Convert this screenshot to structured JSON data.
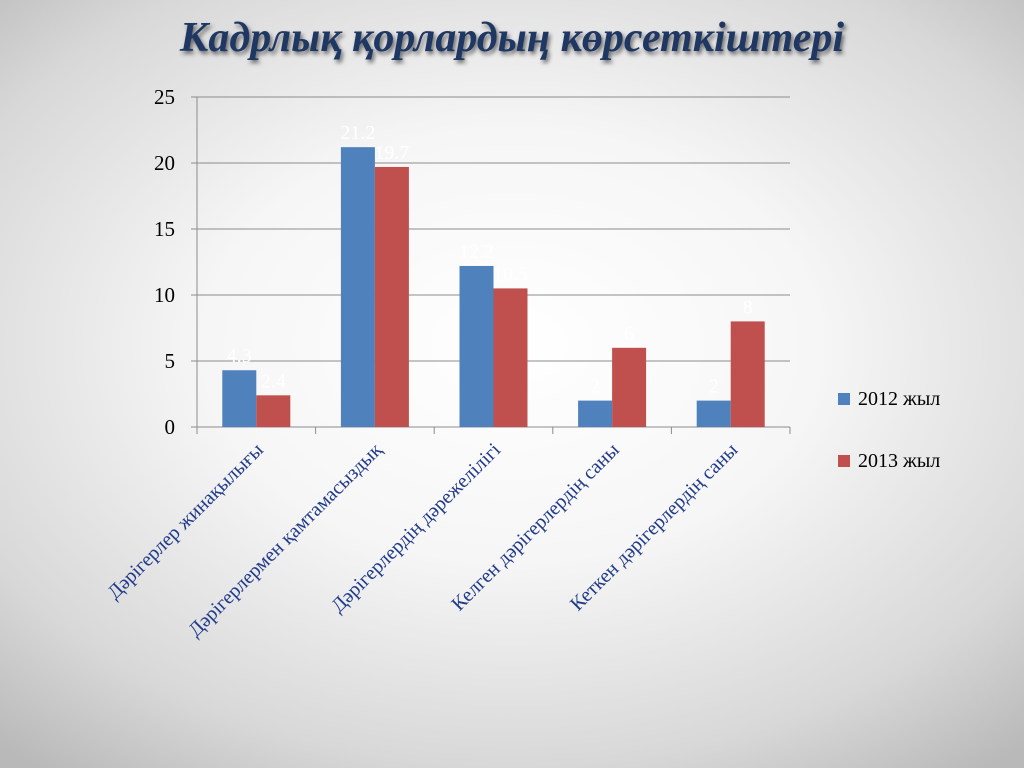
{
  "slide": {
    "title": "Кадрлық қорлардың көрсеткіштері"
  },
  "chart_data": {
    "type": "bar",
    "categories": [
      "Дәрігерлер жинақылығы",
      "Дәрігерлермен қамтамасыздық",
      "Дәрігерлердің дәрежелілігі",
      "Келген дәрігерлердің саны",
      "Кеткен дәрігерлердің саны"
    ],
    "series": [
      {
        "name": "2012 жыл",
        "color": "#4f81bd",
        "values": [
          4.3,
          21.2,
          12.2,
          2,
          2
        ]
      },
      {
        "name": "2013 жыл",
        "color": "#c0504d",
        "values": [
          2.4,
          19.7,
          10.5,
          6,
          8
        ]
      }
    ],
    "ylim": [
      0,
      25
    ],
    "yticks": [
      0,
      5,
      10,
      15,
      20,
      25
    ],
    "grid": true,
    "legend_position": "right",
    "data_label_color": "#ffffff"
  }
}
